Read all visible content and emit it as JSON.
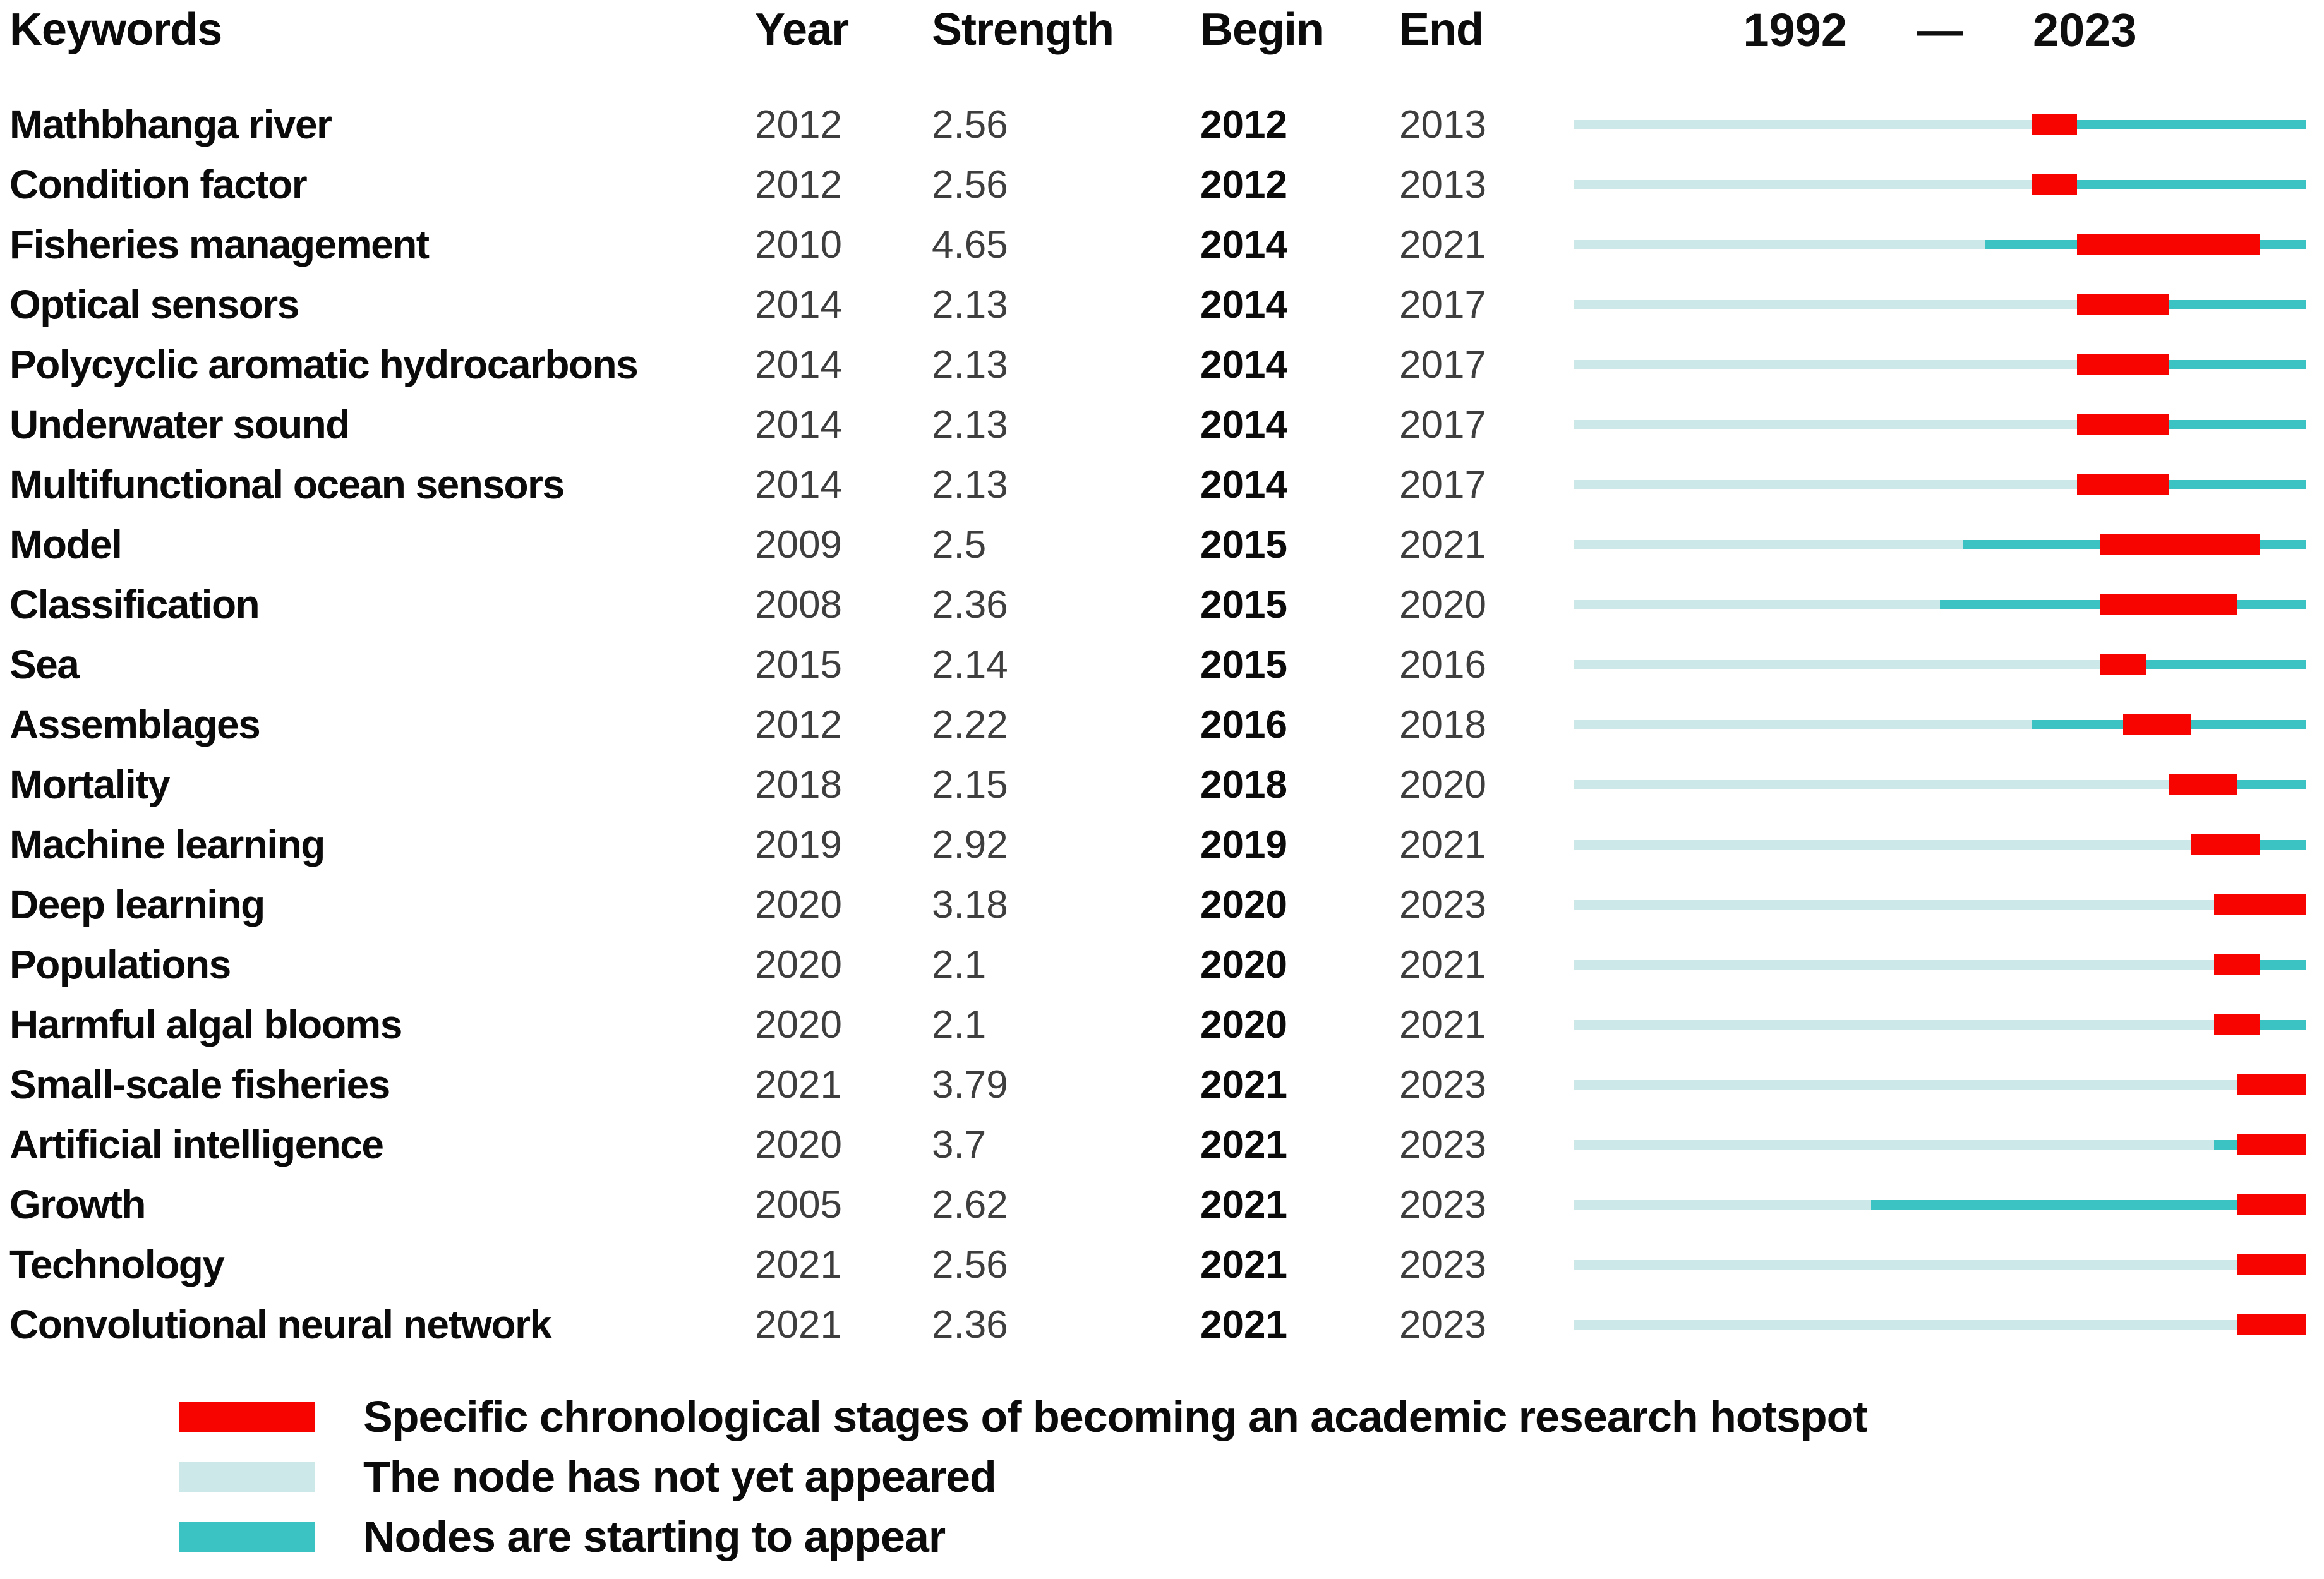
{
  "header": {
    "keywords": "Keywords",
    "year": "Year",
    "strength": "Strength",
    "begin": "Begin",
    "end": "End",
    "range_start": "1992",
    "range_dash": "—",
    "range_end": "2023"
  },
  "colors": {
    "burst": "#F70400",
    "not_yet": "#CDE8E8",
    "starting": "#3BC3C3"
  },
  "chart_data": {
    "type": "bar",
    "subtype": "keyword-citation-burst-timeline",
    "timeline": {
      "start": 1992,
      "end": 2023
    },
    "columns": [
      "Keywords",
      "Year",
      "Strength",
      "Begin",
      "End"
    ],
    "rows": [
      {
        "keyword": "Mathbhanga river",
        "year": 2012,
        "strength": "2.56",
        "begin": 2012,
        "end": 2013
      },
      {
        "keyword": "Condition factor",
        "year": 2012,
        "strength": "2.56",
        "begin": 2012,
        "end": 2013
      },
      {
        "keyword": "Fisheries management",
        "year": 2010,
        "strength": "4.65",
        "begin": 2014,
        "end": 2021
      },
      {
        "keyword": "Optical sensors",
        "year": 2014,
        "strength": "2.13",
        "begin": 2014,
        "end": 2017
      },
      {
        "keyword": "Polycyclic aromatic hydrocarbons",
        "year": 2014,
        "strength": "2.13",
        "begin": 2014,
        "end": 2017
      },
      {
        "keyword": "Underwater sound",
        "year": 2014,
        "strength": "2.13",
        "begin": 2014,
        "end": 2017
      },
      {
        "keyword": "Multifunctional ocean sensors",
        "year": 2014,
        "strength": "2.13",
        "begin": 2014,
        "end": 2017
      },
      {
        "keyword": "Model",
        "year": 2009,
        "strength": "2.5",
        "begin": 2015,
        "end": 2021
      },
      {
        "keyword": "Classification",
        "year": 2008,
        "strength": "2.36",
        "begin": 2015,
        "end": 2020
      },
      {
        "keyword": "Sea",
        "year": 2015,
        "strength": "2.14",
        "begin": 2015,
        "end": 2016
      },
      {
        "keyword": "Assemblages",
        "year": 2012,
        "strength": "2.22",
        "begin": 2016,
        "end": 2018
      },
      {
        "keyword": "Mortality",
        "year": 2018,
        "strength": "2.15",
        "begin": 2018,
        "end": 2020
      },
      {
        "keyword": "Machine learning",
        "year": 2019,
        "strength": "2.92",
        "begin": 2019,
        "end": 2021
      },
      {
        "keyword": "Deep learning",
        "year": 2020,
        "strength": "3.18",
        "begin": 2020,
        "end": 2023
      },
      {
        "keyword": "Populations",
        "year": 2020,
        "strength": "2.1",
        "begin": 2020,
        "end": 2021
      },
      {
        "keyword": "Harmful algal blooms",
        "year": 2020,
        "strength": "2.1",
        "begin": 2020,
        "end": 2021
      },
      {
        "keyword": "Small-scale fisheries",
        "year": 2021,
        "strength": "3.79",
        "begin": 2021,
        "end": 2023
      },
      {
        "keyword": "Artificial intelligence",
        "year": 2020,
        "strength": "3.7",
        "begin": 2021,
        "end": 2023
      },
      {
        "keyword": "Growth",
        "year": 2005,
        "strength": "2.62",
        "begin": 2021,
        "end": 2023
      },
      {
        "keyword": "Technology",
        "year": 2021,
        "strength": "2.56",
        "begin": 2021,
        "end": 2023
      },
      {
        "keyword": "Convolutional neural network",
        "year": 2021,
        "strength": "2.36",
        "begin": 2021,
        "end": 2023
      }
    ]
  },
  "legend": [
    {
      "color": "#F70400",
      "label": "Specific chronological stages of becoming an academic research hotspot"
    },
    {
      "color": "#CDE8E8",
      "label": "The node has not yet appeared"
    },
    {
      "color": "#3BC3C3",
      "label": "Nodes are starting to appear"
    }
  ]
}
